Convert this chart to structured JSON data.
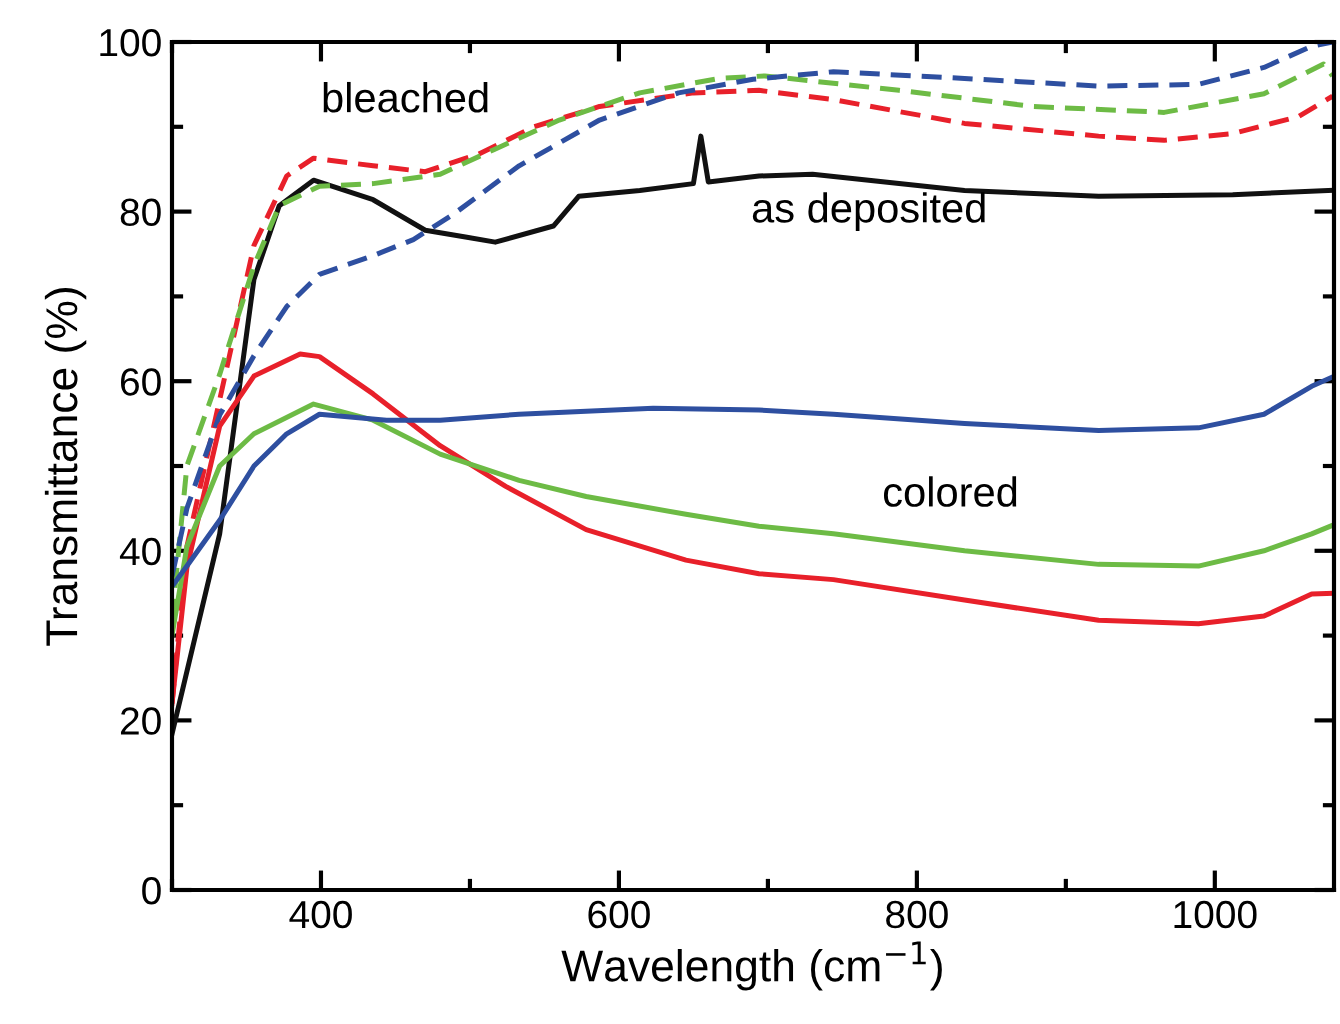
{
  "chart_data": {
    "type": "line",
    "xlabel": "Wavelength (cm$^{−1}$)",
    "ylabel": "Transmittance (%)",
    "xlim": [
      300,
      1080
    ],
    "ylim": [
      0,
      100
    ],
    "xticks": [
      400,
      600,
      800,
      1000
    ],
    "yticks": [
      0,
      20,
      40,
      60,
      80,
      100
    ],
    "grid": false,
    "legend": false,
    "series": [
      {
        "color": "#111111",
        "line_style": "solid",
        "x": [
          300,
          332,
          355,
          372,
          395,
          435,
          470,
          497,
          517,
          556,
          573,
          614,
          650,
          655,
          660,
          694,
          730,
          832,
          922,
          1012,
          1079
        ],
        "values": [
          18.4,
          42,
          72,
          80.7,
          83.7,
          81.4,
          77.8,
          77,
          76.4,
          78.3,
          81.8,
          82.5,
          83.3,
          88.9,
          83.5,
          84.2,
          84.4,
          82.5,
          81.8,
          82,
          82.5
        ]
      },
      {
        "color": "#e8202a",
        "line_style": "dashed",
        "x": [
          300,
          310,
          332,
          355,
          377,
          395,
          435,
          470,
          506,
          543,
          587,
          650,
          694,
          744,
          832,
          922,
          966,
          1012,
          1056,
          1079
        ],
        "values": [
          22,
          40.5,
          57.8,
          76,
          84.2,
          86.3,
          85.4,
          84.7,
          86.8,
          90,
          92.4,
          94,
          94.3,
          93.2,
          90.4,
          88.9,
          88.4,
          89.2,
          91.2,
          93.6
        ]
      },
      {
        "color": "#6dbb45",
        "line_style": "dashed",
        "x": [
          300,
          310,
          332,
          355,
          372,
          399,
          435,
          480,
          516,
          560,
          614,
          667,
          698,
          788,
          878,
          966,
          1033,
          1073,
          1079
        ],
        "values": [
          32,
          50,
          60.8,
          73.6,
          80.7,
          83,
          83.3,
          84.4,
          87.3,
          90.8,
          94,
          95.7,
          96,
          94.3,
          92.4,
          91.7,
          93.9,
          97.4,
          96
        ]
      },
      {
        "color": "#2e4fa0",
        "line_style": "dashed",
        "x": [
          300,
          310,
          332,
          355,
          377,
          399,
          435,
          462,
          489,
          533,
          587,
          640,
          690,
          744,
          832,
          922,
          989,
          1033,
          1065,
          1079
        ],
        "values": [
          37,
          45,
          56,
          63,
          68.8,
          72.6,
          74.8,
          76.7,
          79.7,
          85.4,
          90.8,
          94,
          95.6,
          96.5,
          95.7,
          94.8,
          95,
          97,
          99.5,
          100
        ]
      },
      {
        "color": "#e8202a",
        "line_style": "solid",
        "x": [
          300,
          310,
          332,
          355,
          386,
          399,
          435,
          480,
          524,
          578,
          645,
          694,
          744,
          832,
          922,
          989,
          1033,
          1065,
          1079
        ],
        "values": [
          22,
          38,
          54.7,
          60.6,
          63.2,
          62.9,
          58.5,
          52.4,
          47.6,
          42.5,
          38.9,
          37.3,
          36.6,
          34.2,
          31.8,
          31.4,
          32.3,
          34.9,
          35
        ]
      },
      {
        "color": "#6dbb45",
        "line_style": "solid",
        "x": [
          300,
          310,
          332,
          355,
          395,
          435,
          480,
          533,
          578,
          645,
          694,
          744,
          832,
          922,
          989,
          1033,
          1065,
          1079
        ],
        "values": [
          30,
          40.5,
          50,
          53.8,
          57.3,
          55.4,
          51.4,
          48.3,
          46.4,
          44.3,
          42.9,
          42,
          40,
          38.4,
          38.2,
          40,
          42,
          43
        ]
      },
      {
        "color": "#2e4fa0",
        "line_style": "solid",
        "x": [
          300,
          310,
          332,
          355,
          377,
          399,
          444,
          480,
          533,
          623,
          694,
          744,
          832,
          922,
          989,
          1033,
          1065,
          1079
        ],
        "values": [
          35.8,
          38.2,
          43.6,
          50,
          53.8,
          56.1,
          55.4,
          55.4,
          56.1,
          56.8,
          56.6,
          56.1,
          55,
          54.2,
          54.5,
          56.1,
          59.4,
          60.5
        ]
      }
    ],
    "annotations": [
      "bleached",
      "as deposited",
      "colored"
    ]
  }
}
